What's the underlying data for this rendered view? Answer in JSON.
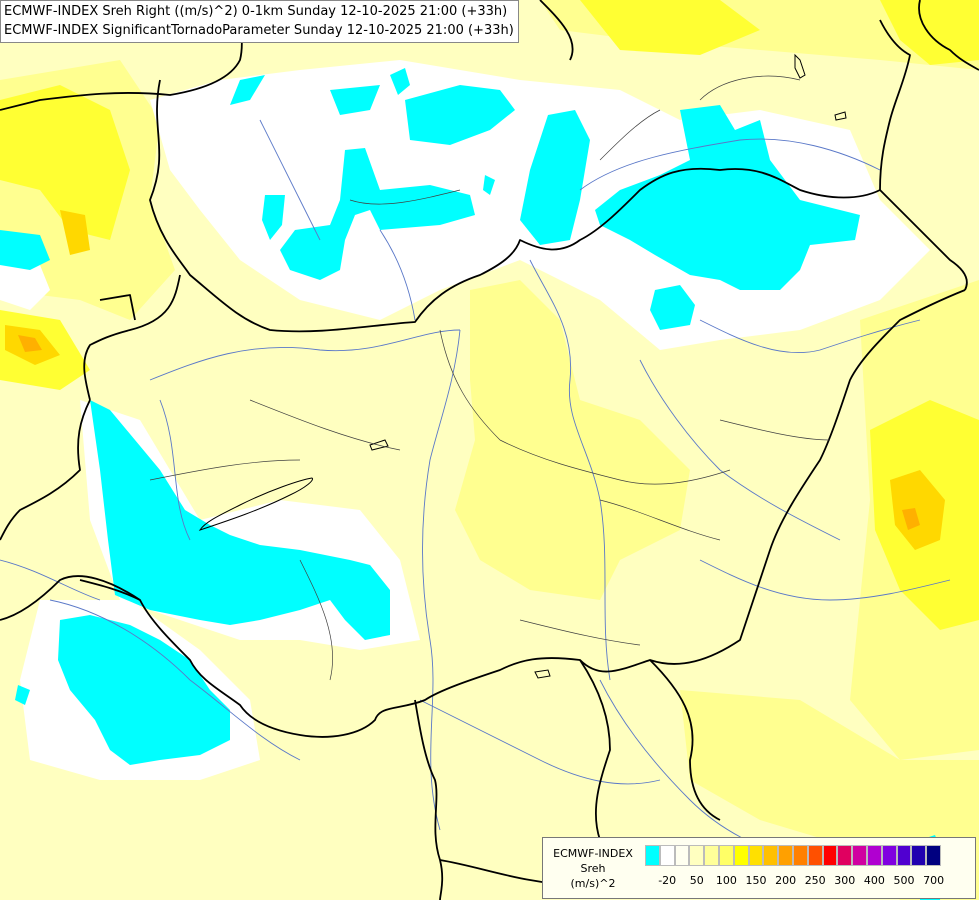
{
  "title": {
    "line1": "ECMWF-INDEX Sreh Right ((m/s)^2) 0-1km Sunday 12-10-2025 21:00 (+33h)",
    "line2": "ECMWF-INDEX SignificantTornadoParameter Sunday 12-10-2025 21:00 (+33h)"
  },
  "legend": {
    "label_line1": "ECMWF-INDEX",
    "label_line2": "Sreh",
    "label_line3": "(m/s)^2",
    "swatch_colors": [
      "#00ffff",
      "#ffffff",
      "#fffff0",
      "#ffffc0",
      "#ffff99",
      "#ffff66",
      "#ffff00",
      "#ffe000",
      "#ffc000",
      "#ffa000",
      "#ff8000",
      "#ff5000",
      "#ff0000",
      "#e00060",
      "#d000a0",
      "#b000d0",
      "#8000e0",
      "#5000d0",
      "#2000b0",
      "#000080"
    ],
    "ticks": [
      "-20",
      "50",
      "100",
      "150",
      "200",
      "250",
      "300",
      "400",
      "500",
      "700"
    ]
  },
  "palette": {
    "negative": "#00ffff",
    "neutral": "#ffffff",
    "very_low": "#ffffc0",
    "low": "#ffff80",
    "moderate": "#ffff00",
    "high": "#ffe000",
    "highest": "#ffc800",
    "border": "#000000",
    "river": "#5a78c8"
  }
}
